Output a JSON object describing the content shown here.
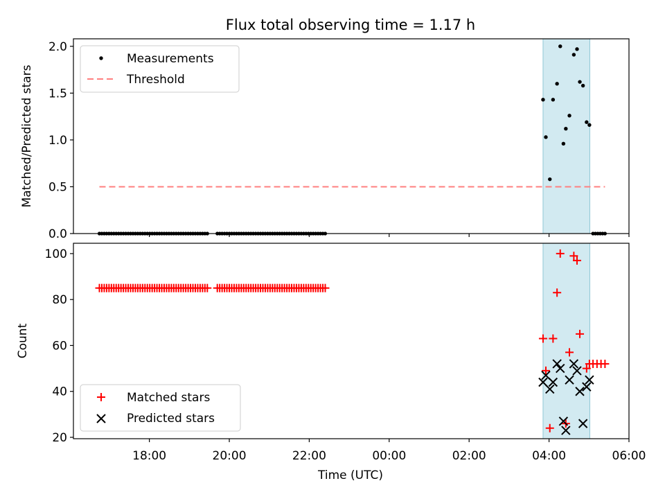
{
  "chart_data": {
    "title": "Flux total observing time = 1.17 h",
    "type": "scatter",
    "x_axis": {
      "label": "Time (UTC)",
      "unit": "hours since 16:00 UTC",
      "range": [
        0.1,
        14.0
      ],
      "ticks": [
        {
          "value": 2,
          "label": "18:00"
        },
        {
          "value": 4,
          "label": "20:00"
        },
        {
          "value": 6,
          "label": "22:00"
        },
        {
          "value": 8,
          "label": "00:00"
        },
        {
          "value": 10,
          "label": "02:00"
        },
        {
          "value": 12,
          "label": "04:00"
        },
        {
          "value": 14,
          "label": "06:00"
        }
      ]
    },
    "highlight_span": {
      "x_start": 11.85,
      "x_end": 13.02,
      "color": "#ADD8E6"
    },
    "panels": [
      {
        "name": "ratio",
        "ylabel": "Matched/Predicted stars",
        "ylim": [
          0.0,
          2.08
        ],
        "yticks": [
          {
            "value": 0.0,
            "label": "0.0"
          },
          {
            "value": 0.5,
            "label": "0.5"
          },
          {
            "value": 1.0,
            "label": "1.0"
          },
          {
            "value": 1.5,
            "label": "1.5"
          },
          {
            "value": 2.0,
            "label": "2.0"
          }
        ],
        "legend": {
          "placement": "upper-left",
          "entries": [
            {
              "label": "Measurements",
              "marker": "dot",
              "color": "#000000"
            },
            {
              "label": "Threshold",
              "marker": "dashed-line",
              "color": "#FF7F7F"
            }
          ]
        },
        "threshold": {
          "y": 0.5,
          "x_start": 0.75,
          "x_end": 13.4
        },
        "series": [
          {
            "name": "Measurements",
            "zero_ranges": [
              [
                0.75,
                3.45
              ],
              [
                3.7,
                6.4
              ],
              [
                13.1,
                13.45
              ]
            ],
            "zero_step": 0.06,
            "points": [
              {
                "x": 11.85,
                "y": 1.43
              },
              {
                "x": 11.92,
                "y": 1.03
              },
              {
                "x": 12.02,
                "y": 0.58
              },
              {
                "x": 12.1,
                "y": 1.43
              },
              {
                "x": 12.2,
                "y": 1.6
              },
              {
                "x": 12.28,
                "y": 2.0
              },
              {
                "x": 12.36,
                "y": 0.96
              },
              {
                "x": 12.42,
                "y": 1.12
              },
              {
                "x": 12.51,
                "y": 1.26
              },
              {
                "x": 12.62,
                "y": 1.91
              },
              {
                "x": 12.7,
                "y": 1.97
              },
              {
                "x": 12.77,
                "y": 1.62
              },
              {
                "x": 12.85,
                "y": 1.58
              },
              {
                "x": 12.94,
                "y": 1.19
              },
              {
                "x": 13.01,
                "y": 1.16
              }
            ]
          }
        ]
      },
      {
        "name": "count",
        "ylabel": "Count",
        "ylim": [
          19.4,
          104.5
        ],
        "yticks": [
          {
            "value": 20,
            "label": "20"
          },
          {
            "value": 40,
            "label": "40"
          },
          {
            "value": 60,
            "label": "60"
          },
          {
            "value": 80,
            "label": "80"
          },
          {
            "value": 100,
            "label": "100"
          }
        ],
        "legend": {
          "placement": "lower-left",
          "entries": [
            {
              "label": "Matched stars",
              "marker": "plus",
              "color": "#FF0000"
            },
            {
              "label": "Predicted stars",
              "marker": "x",
              "color": "#000000"
            }
          ]
        },
        "series": [
          {
            "name": "Matched stars",
            "marker": "plus",
            "color": "#FF0000",
            "constant_ranges": [
              {
                "x_range": [
                  0.75,
                  3.45
                ],
                "y": 85,
                "step": 0.06
              },
              {
                "x_range": [
                  3.7,
                  6.4
                ],
                "y": 85,
                "step": 0.06
              }
            ],
            "points": [
              {
                "x": 11.85,
                "y": 63
              },
              {
                "x": 11.92,
                "y": 49
              },
              {
                "x": 12.02,
                "y": 24
              },
              {
                "x": 12.1,
                "y": 63
              },
              {
                "x": 12.2,
                "y": 83
              },
              {
                "x": 12.28,
                "y": 100
              },
              {
                "x": 12.42,
                "y": 26
              },
              {
                "x": 12.51,
                "y": 57
              },
              {
                "x": 12.62,
                "y": 99
              },
              {
                "x": 12.7,
                "y": 97
              },
              {
                "x": 12.77,
                "y": 65
              },
              {
                "x": 12.94,
                "y": 50
              },
              {
                "x": 13.01,
                "y": 52
              },
              {
                "x": 13.1,
                "y": 52
              },
              {
                "x": 13.2,
                "y": 52
              },
              {
                "x": 13.3,
                "y": 52
              },
              {
                "x": 13.4,
                "y": 52
              }
            ]
          },
          {
            "name": "Predicted stars",
            "marker": "x",
            "color": "#000000",
            "points": [
              {
                "x": 11.85,
                "y": 44
              },
              {
                "x": 11.92,
                "y": 47
              },
              {
                "x": 12.02,
                "y": 41
              },
              {
                "x": 12.1,
                "y": 44
              },
              {
                "x": 12.2,
                "y": 52
              },
              {
                "x": 12.28,
                "y": 50
              },
              {
                "x": 12.36,
                "y": 27
              },
              {
                "x": 12.42,
                "y": 23
              },
              {
                "x": 12.51,
                "y": 45
              },
              {
                "x": 12.62,
                "y": 52
              },
              {
                "x": 12.7,
                "y": 49
              },
              {
                "x": 12.77,
                "y": 40
              },
              {
                "x": 12.85,
                "y": 26
              },
              {
                "x": 12.94,
                "y": 42
              },
              {
                "x": 13.01,
                "y": 45
              }
            ]
          }
        ]
      }
    ]
  }
}
